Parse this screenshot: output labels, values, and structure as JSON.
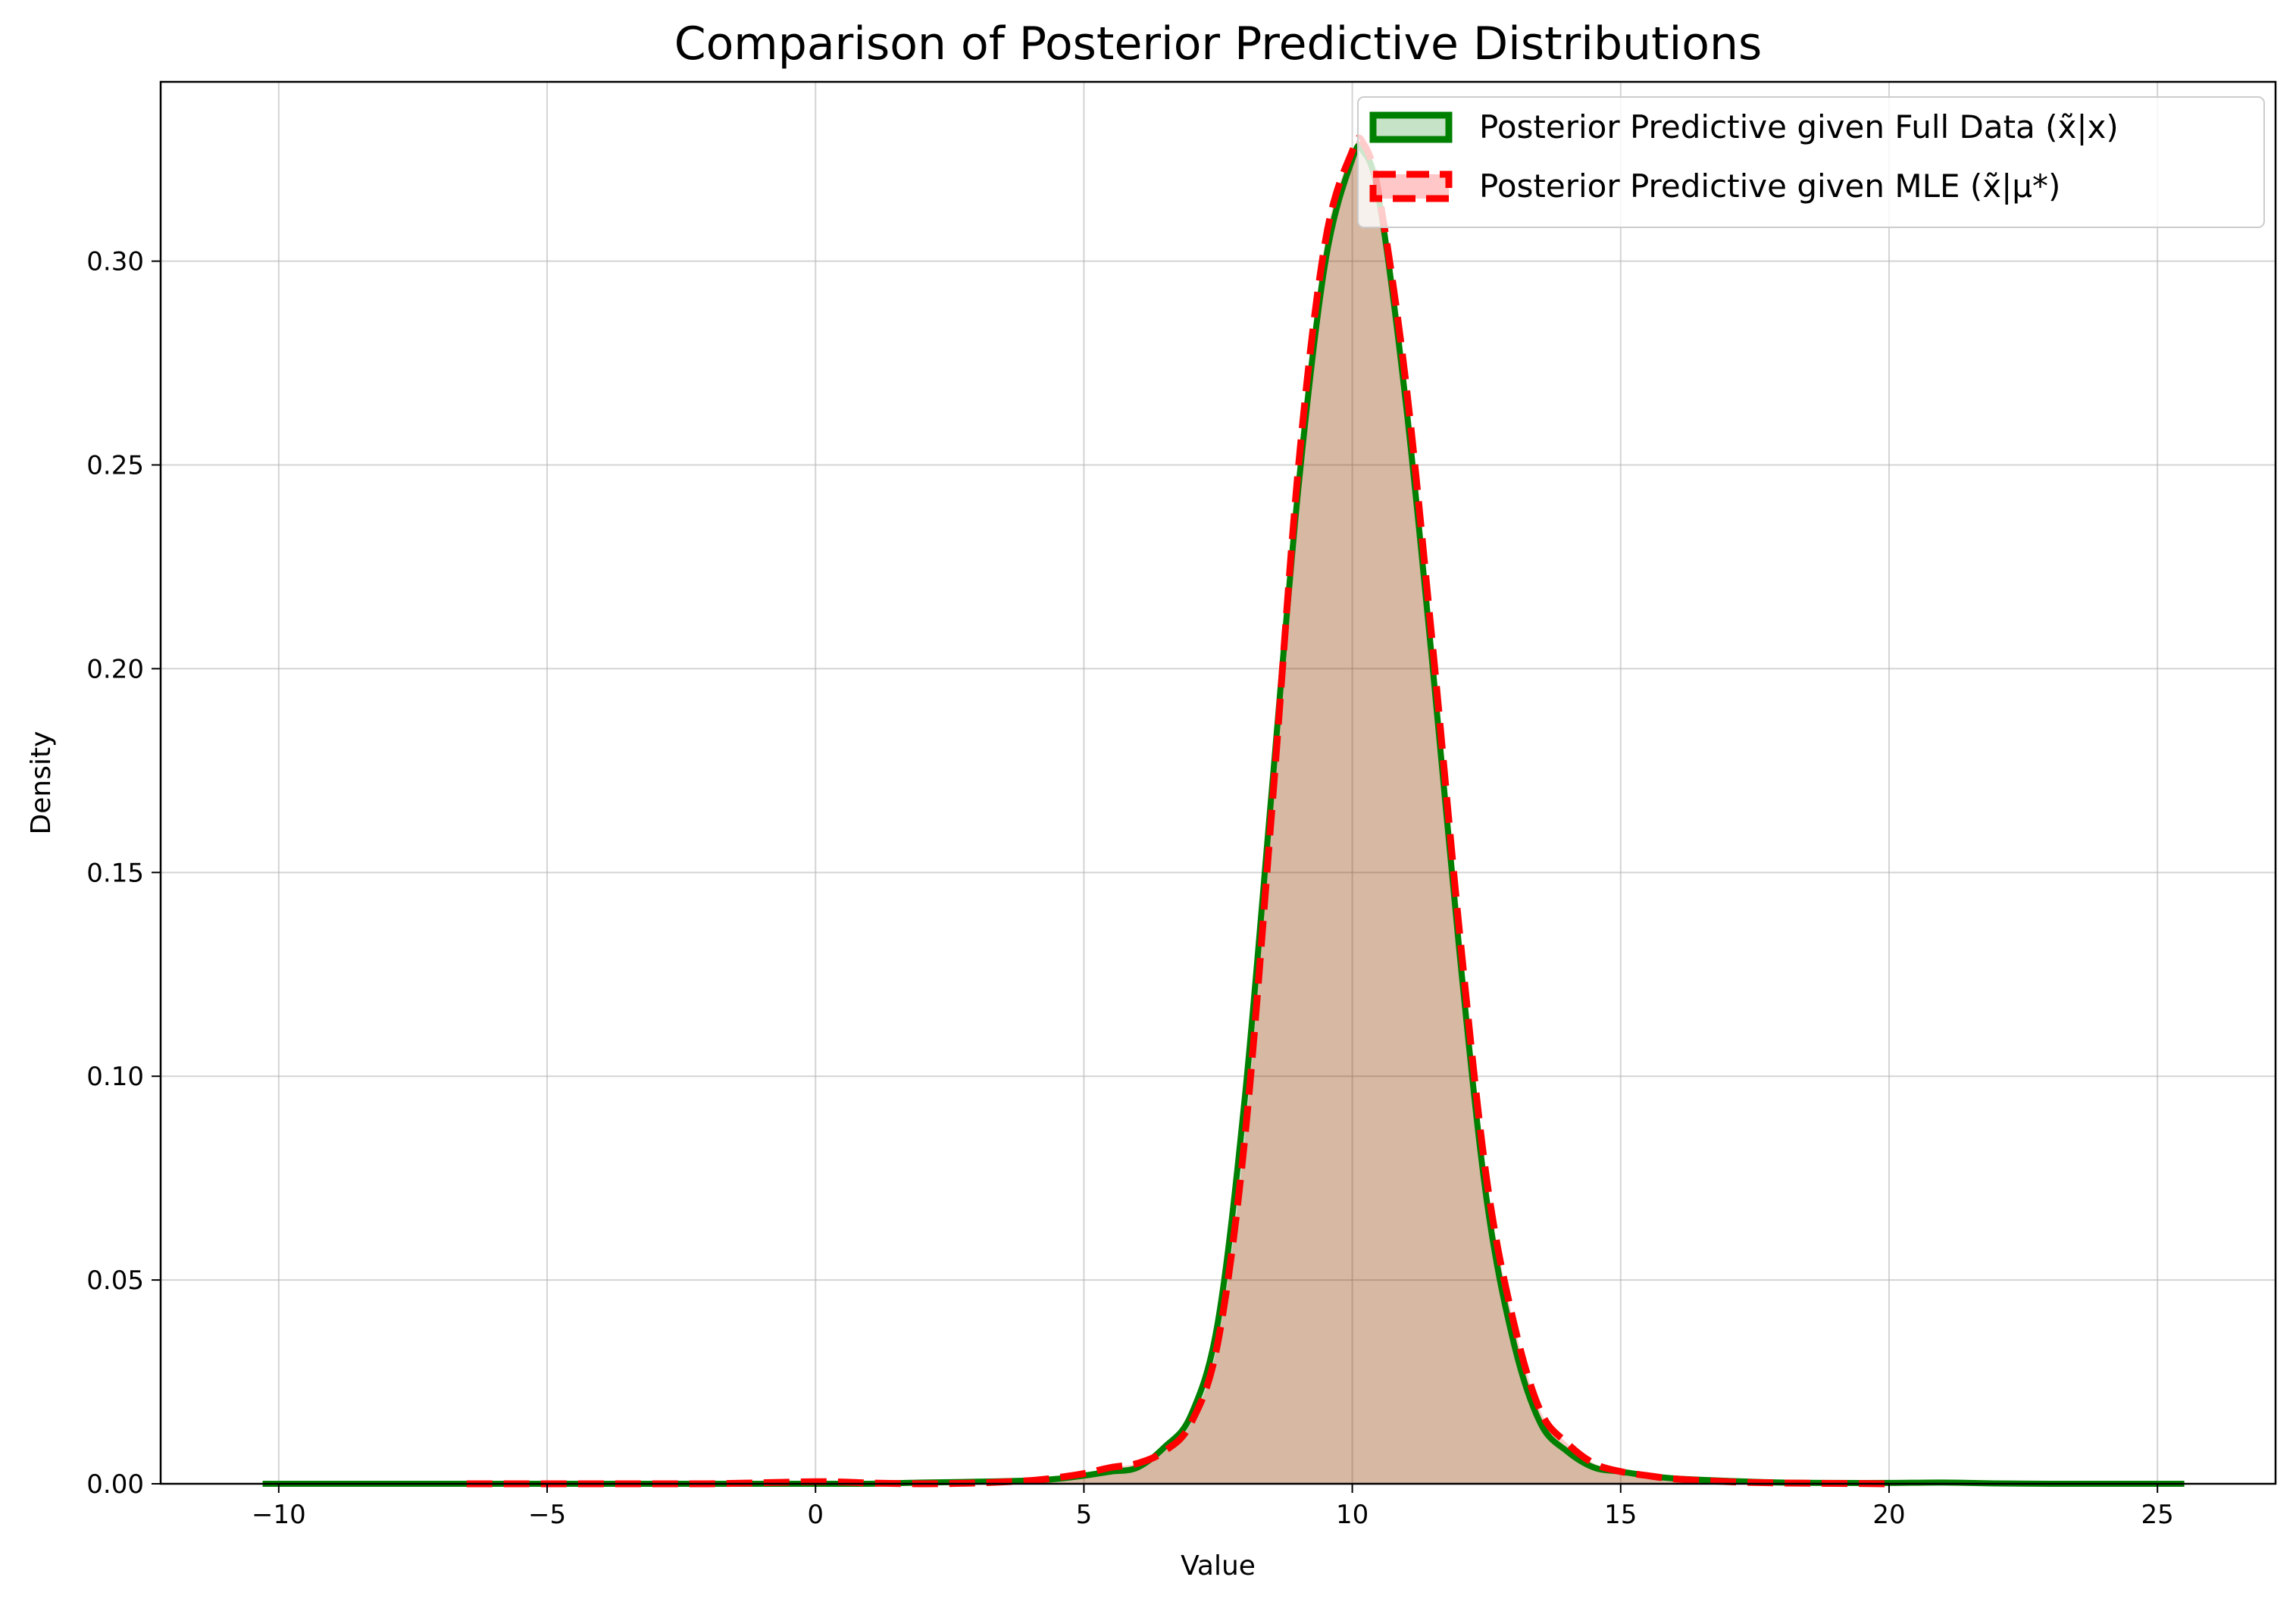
{
  "chart_data": {
    "type": "area",
    "title": "Comparison of Posterior Predictive Distributions",
    "xlabel": "Value",
    "ylabel": "Density",
    "xlim": [
      -12.2,
      27.2
    ],
    "ylim": [
      0,
      0.344
    ],
    "xticks": [
      -10,
      -5,
      0,
      5,
      10,
      15,
      20,
      25
    ],
    "xtick_labels": [
      "−10",
      "−5",
      "0",
      "5",
      "10",
      "15",
      "20",
      "25"
    ],
    "yticks": [
      0.0,
      0.05,
      0.1,
      0.15,
      0.2,
      0.25,
      0.3
    ],
    "ytick_labels": [
      "0.00",
      "0.05",
      "0.10",
      "0.15",
      "0.20",
      "0.25",
      "0.30"
    ],
    "grid": true,
    "legend_position": "top-right",
    "series": [
      {
        "name": "Posterior Predictive given Full Data (x̃|x)",
        "color": "#008000",
        "fill": "#008000",
        "line_style": "solid",
        "x": [
          -10.3,
          -8,
          -6,
          -4,
          -2,
          0,
          1,
          2,
          3,
          4,
          4.5,
          5,
          5.5,
          6,
          6.5,
          7,
          7.5,
          8,
          8.5,
          9,
          9.5,
          10,
          10.2,
          10.5,
          11,
          11.5,
          12,
          12.5,
          13,
          13.5,
          14,
          14.5,
          15,
          15.5,
          16,
          17,
          18,
          19,
          20,
          21,
          22,
          23,
          24,
          25.5
        ],
        "y": [
          0.0,
          0.0,
          0.0,
          0.0,
          0.0,
          0.0,
          0.0,
          0.0003,
          0.0005,
          0.0008,
          0.0012,
          0.002,
          0.003,
          0.004,
          0.009,
          0.017,
          0.04,
          0.095,
          0.17,
          0.245,
          0.3,
          0.325,
          0.327,
          0.315,
          0.265,
          0.2,
          0.13,
          0.07,
          0.035,
          0.015,
          0.008,
          0.004,
          0.003,
          0.002,
          0.0013,
          0.0007,
          0.0003,
          0.0002,
          0.0002,
          0.0003,
          0.0001,
          0.0,
          0.0,
          0.0
        ]
      },
      {
        "name": "Posterior Predictive given MLE (x̃|μ*)",
        "color": "#ff0000",
        "fill": "#ff0000",
        "line_style": "dashed",
        "x": [
          -6.5,
          -4,
          -2,
          0,
          1,
          2,
          3,
          4,
          4.5,
          5,
          5.5,
          6,
          6.5,
          7,
          7.5,
          8,
          8.5,
          9,
          9.5,
          10,
          10.2,
          10.5,
          11,
          11.5,
          12,
          12.5,
          13,
          13.5,
          14,
          14.5,
          15,
          15.5,
          16,
          17,
          18,
          19,
          20
        ],
        "y": [
          0.0,
          0.0,
          0.0,
          0.0005,
          0.0002,
          0.0,
          0.0002,
          0.0008,
          0.0015,
          0.0025,
          0.004,
          0.005,
          0.008,
          0.015,
          0.035,
          0.085,
          0.165,
          0.25,
          0.305,
          0.327,
          0.329,
          0.316,
          0.27,
          0.205,
          0.135,
          0.075,
          0.04,
          0.018,
          0.01,
          0.005,
          0.003,
          0.002,
          0.0012,
          0.0005,
          0.0002,
          0.0001,
          0.0
        ]
      }
    ]
  }
}
